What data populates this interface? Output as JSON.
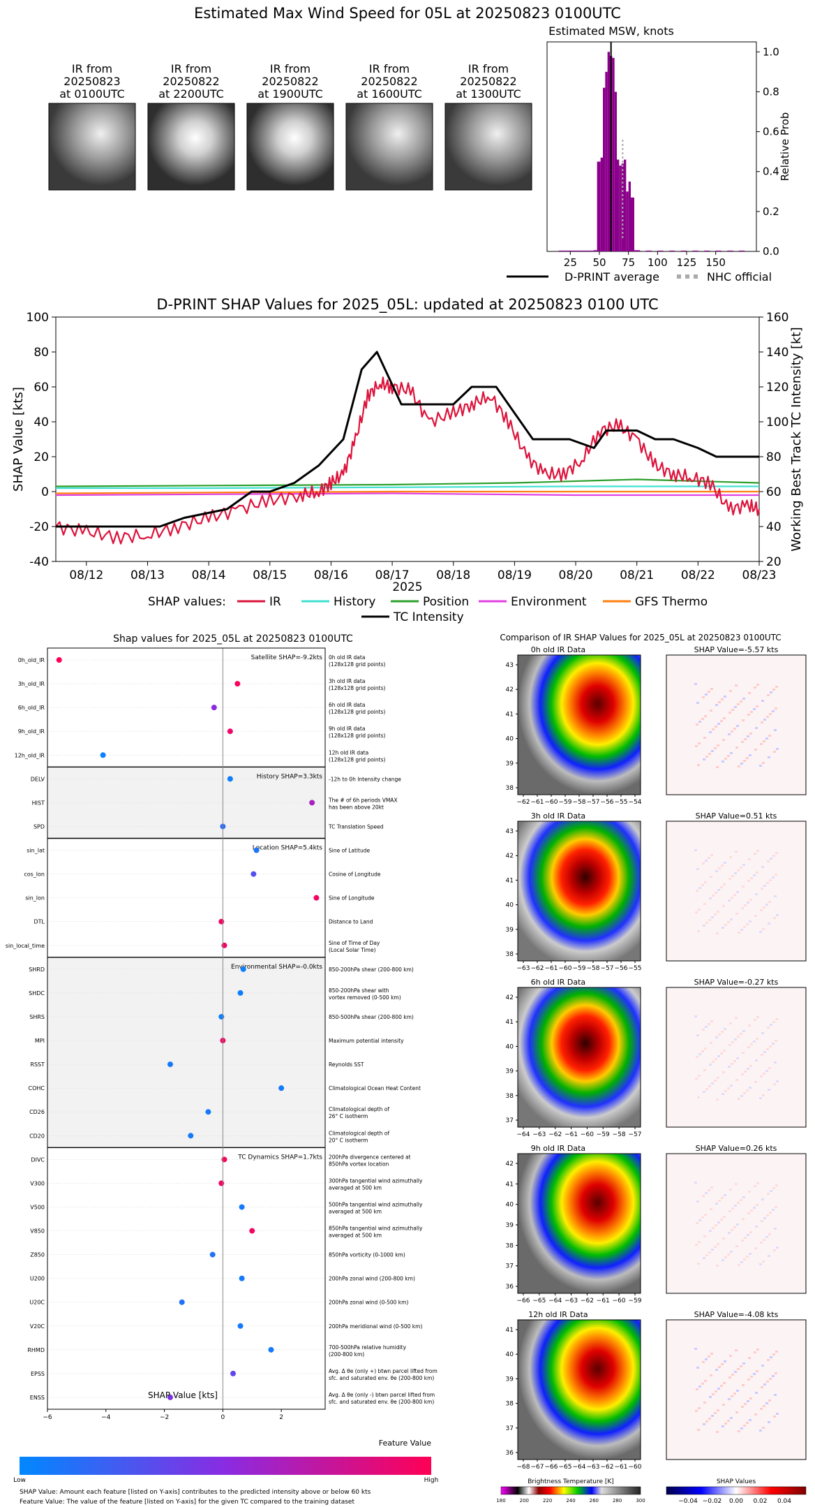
{
  "page_title": "Estimated Max Wind Speed for 05L at 20250823 0100UTC",
  "ir_thumbs": [
    {
      "line1": "IR from",
      "line2": "20250823",
      "line3": "at 0100UTC"
    },
    {
      "line1": "IR from",
      "line2": "20250822",
      "line3": "at 2200UTC"
    },
    {
      "line1": "IR from",
      "line2": "20250822",
      "line3": "at 1900UTC"
    },
    {
      "line1": "IR from",
      "line2": "20250822",
      "line3": "at 1600UTC"
    },
    {
      "line1": "IR from",
      "line2": "20250822",
      "line3": "at 1300UTC"
    }
  ],
  "chart_data": [
    {
      "type": "bar",
      "title": "Estimated MSW, knots",
      "ylabel": "Relative Prob",
      "xlim": [
        5,
        185
      ],
      "ylim": [
        0,
        1.05
      ],
      "xticks": [
        25,
        50,
        75,
        100,
        125,
        150
      ],
      "yticks": [
        0.0,
        0.2,
        0.4,
        0.6,
        0.8,
        1.0
      ],
      "bar_color": "#8b008b",
      "bins": [
        {
          "x": 15,
          "v": 0.004
        },
        {
          "x": 20,
          "v": 0.004
        },
        {
          "x": 25,
          "v": 0.004
        },
        {
          "x": 30,
          "v": 0.004
        },
        {
          "x": 35,
          "v": 0.004
        },
        {
          "x": 40,
          "v": 0.004
        },
        {
          "x": 45,
          "v": 0.006
        },
        {
          "x": 48,
          "v": 0.45
        },
        {
          "x": 51,
          "v": 0.47
        },
        {
          "x": 53,
          "v": 0.82
        },
        {
          "x": 55,
          "v": 0.9
        },
        {
          "x": 57,
          "v": 1.0
        },
        {
          "x": 59,
          "v": 0.98
        },
        {
          "x": 61,
          "v": 0.97
        },
        {
          "x": 63,
          "v": 0.8
        },
        {
          "x": 65,
          "v": 0.46
        },
        {
          "x": 67,
          "v": 0.43
        },
        {
          "x": 69,
          "v": 0.44
        },
        {
          "x": 71,
          "v": 0.46
        },
        {
          "x": 73,
          "v": 0.3
        },
        {
          "x": 75,
          "v": 0.35
        },
        {
          "x": 77,
          "v": 0.27
        },
        {
          "x": 80,
          "v": 0.006
        },
        {
          "x": 90,
          "v": 0.004
        },
        {
          "x": 100,
          "v": 0.004
        },
        {
          "x": 110,
          "v": 0.004
        },
        {
          "x": 120,
          "v": 0.004
        },
        {
          "x": 130,
          "v": 0.004
        },
        {
          "x": 140,
          "v": 0.004
        },
        {
          "x": 150,
          "v": 0.004
        },
        {
          "x": 160,
          "v": 0.004
        },
        {
          "x": 170,
          "v": 0.004
        }
      ],
      "dprint_average": 60,
      "nhc_official": 70,
      "legend": [
        "D-PRINT average",
        "NHC official"
      ]
    },
    {
      "type": "line",
      "title": "D-PRINT SHAP Values for 2025_05L: updated at 20250823 0100 UTC",
      "ylabel": "SHAP Value [kts]",
      "y2label": "Working Best Track TC Intensity [kt]",
      "xlabel": "2025",
      "ylim": [
        -40,
        100
      ],
      "y2lim": [
        20,
        160
      ],
      "xlim_days": [
        11.5,
        23.0
      ],
      "xticks": [
        "08/12",
        "08/13",
        "08/14",
        "08/15",
        "08/16",
        "08/17",
        "08/18",
        "08/19",
        "08/20",
        "08/21",
        "08/22",
        "08/23"
      ],
      "yticks": [
        -40,
        -20,
        0,
        20,
        40,
        60,
        80,
        100
      ],
      "y2ticks": [
        20,
        40,
        60,
        80,
        100,
        120,
        140,
        160
      ],
      "legend_prefix": "SHAP values:",
      "series": [
        {
          "name": "IR",
          "color": "#dc143c",
          "x": [
            11.5,
            12.0,
            12.5,
            13.0,
            13.5,
            14.0,
            14.5,
            15.0,
            15.5,
            15.8,
            16.0,
            16.2,
            16.4,
            16.6,
            16.8,
            17.0,
            17.3,
            17.6,
            18.0,
            18.3,
            18.6,
            18.9,
            19.2,
            19.5,
            19.8,
            20.1,
            20.4,
            20.7,
            21.0,
            21.3,
            21.6,
            21.9,
            22.2,
            22.5,
            22.8,
            23.0
          ],
          "y": [
            -20,
            -23,
            -26,
            -25,
            -20,
            -15,
            -10,
            -5,
            -2,
            0,
            5,
            10,
            30,
            55,
            62,
            60,
            58,
            40,
            45,
            50,
            55,
            40,
            20,
            10,
            10,
            18,
            35,
            38,
            30,
            15,
            10,
            8,
            5,
            -10,
            -8,
            -10
          ]
        },
        {
          "name": "History",
          "color": "#40e0d0",
          "x": [
            11.5,
            14.0,
            17.0,
            20.0,
            23.0
          ],
          "y": [
            2,
            2,
            2.5,
            3,
            3
          ]
        },
        {
          "name": "Position",
          "color": "#2ca02c",
          "x": [
            11.5,
            14.0,
            17.0,
            19.0,
            21.0,
            23.0
          ],
          "y": [
            3,
            3.5,
            4,
            5,
            7,
            5
          ]
        },
        {
          "name": "Environment",
          "color": "#e040e0",
          "x": [
            11.5,
            14.0,
            17.0,
            20.0,
            23.0
          ],
          "y": [
            -2,
            -1.5,
            -1,
            -2,
            -2
          ]
        },
        {
          "name": "GFS Thermo",
          "color": "#ff7f0e",
          "x": [
            11.5,
            14.0,
            17.0,
            20.0,
            23.0
          ],
          "y": [
            -1,
            -0.5,
            0,
            0,
            0
          ]
        },
        {
          "name": "TC Intensity",
          "color": "#000000",
          "axis": "right",
          "x": [
            11.5,
            13.2,
            13.6,
            14.3,
            14.7,
            15.0,
            15.4,
            15.8,
            16.2,
            16.5,
            16.75,
            17.15,
            18.0,
            18.3,
            18.7,
            19.3,
            19.9,
            20.3,
            20.5,
            21.0,
            21.3,
            21.6,
            22.0,
            22.3,
            23.0
          ],
          "y": [
            40,
            40,
            45,
            50,
            60,
            60,
            65,
            75,
            90,
            130,
            140,
            110,
            110,
            120,
            120,
            90,
            90,
            85,
            95,
            95,
            90,
            90,
            85,
            80,
            80
          ]
        }
      ]
    },
    {
      "type": "scatter",
      "title": "Shap values for 2025_05L at 20250823 0100UTC",
      "xlabel": "SHAP Value [kts]",
      "xlim": [
        -6,
        3.5
      ],
      "xticks": [
        -6,
        -4,
        -2,
        0,
        2
      ],
      "groups": [
        {
          "label": "Satellite SHAP=-9.2kts",
          "features": [
            {
              "name": "0h_old_IR",
              "value": -5.6,
              "norm": 1.0,
              "desc1": "0h old IR data",
              "desc2": "(128x128 grid points)"
            },
            {
              "name": "3h_old_IR",
              "value": 0.5,
              "norm": 0.97,
              "desc1": "3h old IR data",
              "desc2": "(128x128 grid points)"
            },
            {
              "name": "6h_old_IR",
              "value": -0.3,
              "norm": 0.5,
              "desc1": "6h old IR data",
              "desc2": "(128x128 grid points)"
            },
            {
              "name": "9h_old_IR",
              "value": 0.25,
              "norm": 0.93,
              "desc1": "9h old IR data",
              "desc2": "(128x128 grid points)"
            },
            {
              "name": "12h_old_IR",
              "value": -4.1,
              "norm": 0.03,
              "desc1": "12h old IR data",
              "desc2": "(128x128 grid points)"
            }
          ]
        },
        {
          "label": "History SHAP=3.3kts",
          "features": [
            {
              "name": "DELV",
              "value": 0.25,
              "norm": 0.05,
              "desc1": "-12h to 0h Intensity change",
              "desc2": ""
            },
            {
              "name": "HIST",
              "value": 3.05,
              "norm": 0.62,
              "desc1": "The # of 6h periods VMAX",
              "desc2": "has been above 20kt"
            },
            {
              "name": "SPD",
              "value": 0.0,
              "norm": 0.15,
              "desc1": "TC Translation Speed",
              "desc2": ""
            }
          ]
        },
        {
          "label": "Location SHAP=5.4kts",
          "features": [
            {
              "name": "sin_lat",
              "value": 1.15,
              "norm": 0.1,
              "desc1": "Sine of Latitude",
              "desc2": ""
            },
            {
              "name": "cos_lon",
              "value": 1.05,
              "norm": 0.3,
              "desc1": "Cosine of Longitude",
              "desc2": ""
            },
            {
              "name": "sin_lon",
              "value": 3.2,
              "norm": 0.95,
              "desc1": "Sine of Longitude",
              "desc2": ""
            },
            {
              "name": "DTL",
              "value": -0.05,
              "norm": 0.95,
              "desc1": "Distance to Land",
              "desc2": ""
            },
            {
              "name": "sin_local_time",
              "value": 0.05,
              "norm": 0.95,
              "desc1": "Sine of Time of Day",
              "desc2": "(Local Solar Time)"
            }
          ]
        },
        {
          "label": "Environmental SHAP=-0.0kts",
          "features": [
            {
              "name": "SHRD",
              "value": 0.7,
              "norm": 0.05,
              "desc1": "850-200hPa shear (200-800 km)",
              "desc2": ""
            },
            {
              "name": "SHDC",
              "value": 0.6,
              "norm": 0.05,
              "desc1": "850-200hPa shear with",
              "desc2": "vortex removed (0-500 km)"
            },
            {
              "name": "SHRS",
              "value": -0.05,
              "norm": 0.05,
              "desc1": "850-500hPa shear (200-800 km)",
              "desc2": ""
            },
            {
              "name": "MPI",
              "value": 0.0,
              "norm": 0.95,
              "desc1": "Maximum potential intensity",
              "desc2": ""
            },
            {
              "name": "RSST",
              "value": -1.8,
              "norm": 0.08,
              "desc1": "Reynolds SST",
              "desc2": ""
            },
            {
              "name": "COHC",
              "value": 2.0,
              "norm": 0.08,
              "desc1": "Climatological Ocean Heat Content",
              "desc2": ""
            },
            {
              "name": "CD26",
              "value": -0.5,
              "norm": 0.08,
              "desc1": "Climatological depth of",
              "desc2": "26° C isotherm"
            },
            {
              "name": "CD20",
              "value": -1.1,
              "norm": 0.08,
              "desc1": "Climatological depth of",
              "desc2": "20° C isotherm"
            }
          ]
        },
        {
          "label": "TC Dynamics SHAP=1.7kts",
          "features": [
            {
              "name": "DIVC",
              "value": 0.05,
              "norm": 0.97,
              "desc1": "200hPa divergence centered at",
              "desc2": "850hPa vortex location"
            },
            {
              "name": "V300",
              "value": -0.05,
              "norm": 0.95,
              "desc1": "300hPa tangential wind azimuthally",
              "desc2": "averaged at 500 km"
            },
            {
              "name": "V500",
              "value": 0.65,
              "norm": 0.08,
              "desc1": "500hPa tangential wind azimuthally",
              "desc2": "averaged at 500 km"
            },
            {
              "name": "V850",
              "value": 1.0,
              "norm": 0.95,
              "desc1": "850hPa tangential wind azimuthally",
              "desc2": "averaged at 500 km"
            },
            {
              "name": "Z850",
              "value": -0.35,
              "norm": 0.12,
              "desc1": "850hPa vorticity (0-1000 km)",
              "desc2": ""
            },
            {
              "name": "U200",
              "value": 0.65,
              "norm": 0.08,
              "desc1": "200hPa zonal wind (200-800 km)",
              "desc2": ""
            },
            {
              "name": "U20C",
              "value": -1.4,
              "norm": 0.12,
              "desc1": "200hPa zonal wind (0-500 km)",
              "desc2": ""
            },
            {
              "name": "V20C",
              "value": 0.6,
              "norm": 0.08,
              "desc1": "200hPa meridional wind (0-500 km)",
              "desc2": ""
            },
            {
              "name": "RHMD",
              "value": 1.65,
              "norm": 0.08,
              "desc1": "700-500hPa relative humidity",
              "desc2": "(200-800 km)"
            },
            {
              "name": "EPSS",
              "value": 0.35,
              "norm": 0.35,
              "desc1": "Avg. Δ θe (only +) btwn parcel lifted from",
              "desc2": "sfc. and saturated env. θe (200-800 km)"
            },
            {
              "name": "ENSS",
              "value": -1.8,
              "norm": 0.45,
              "desc1": "Avg. Δ θe (only -) btwn parcel lifted from",
              "desc2": "sfc. and saturated env. θe (200-800 km)"
            }
          ]
        }
      ],
      "colorbar": {
        "title": "Feature Value",
        "low": "Low",
        "high": "High"
      },
      "footnote1": "SHAP Value: Amount each feature [listed on Y-axis] contributes to the predicted intensity above or below 60 kts",
      "footnote2": "Feature Value: The value of the feature [listed on Y-axis] for the given TC compared to the training dataset"
    },
    {
      "type": "heatmap",
      "title": "Comparison of IR SHAP Values for 2025_05L at 20250823 0100UTC",
      "panels": [
        {
          "ir_title": "0h old IR Data",
          "shap_title": "SHAP Value=-5.57 kts",
          "xticks": [
            "−62",
            "−61",
            "−60",
            "−59",
            "−58",
            "−57",
            "−56",
            "−55",
            "−54"
          ],
          "yticks": [
            "43",
            "42",
            "41",
            "40",
            "39",
            "38"
          ]
        },
        {
          "ir_title": "3h old IR Data",
          "shap_title": "SHAP Value=0.51 kts",
          "xticks": [
            "−63",
            "−62",
            "−61",
            "−60",
            "−59",
            "−58",
            "−57",
            "−56",
            "−55"
          ],
          "yticks": [
            "43",
            "42",
            "41",
            "40",
            "39",
            "38"
          ]
        },
        {
          "ir_title": "6h old IR Data",
          "shap_title": "SHAP Value=-0.27 kts",
          "xticks": [
            "−64",
            "−63",
            "−62",
            "−61",
            "−60",
            "−59",
            "−58",
            "−57"
          ],
          "yticks": [
            "42",
            "41",
            "40",
            "39",
            "38",
            "37"
          ]
        },
        {
          "ir_title": "9h old IR Data",
          "shap_title": "SHAP Value=0.26 kts",
          "xticks": [
            "−66",
            "−65",
            "−64",
            "−63",
            "−62",
            "−61",
            "−60",
            "−59"
          ],
          "yticks": [
            "42",
            "41",
            "40",
            "39",
            "38",
            "37",
            "36"
          ]
        },
        {
          "ir_title": "12h old IR Data",
          "shap_title": "SHAP Value=-4.08 kts",
          "xticks": [
            "−68",
            "−67",
            "−66",
            "−65",
            "−64",
            "−63",
            "−62",
            "−61",
            "−60"
          ],
          "yticks": [
            "41",
            "40",
            "39",
            "38",
            "37",
            "36"
          ]
        }
      ],
      "ir_colorbar": {
        "title": "Brightness Temperature [K]",
        "ticks": [
          "180",
          "200",
          "220",
          "240",
          "260",
          "280",
          "300"
        ]
      },
      "shap_colorbar": {
        "title": "SHAP Values",
        "ticks": [
          "−0.04",
          "−0.02",
          "0.00",
          "0.02",
          "0.04"
        ]
      }
    }
  ]
}
